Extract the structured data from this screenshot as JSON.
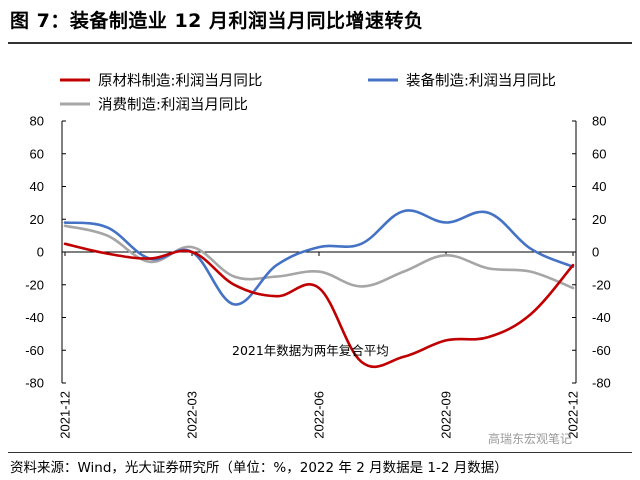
{
  "title": "图 7：装备制造业 12 月利润当月同比增速转负",
  "source": "资料来源：Wind，光大证券研究所（单位：%，2022 年 2 月数据是 1-2 月数据）",
  "watermark": "高瑞东宏观笔记",
  "chart_data": {
    "type": "line",
    "x": [
      "2021-12",
      "2022-01",
      "2022-02",
      "2022-03",
      "2022-04",
      "2022-05",
      "2022-06",
      "2022-07",
      "2022-08",
      "2022-09",
      "2022-10",
      "2022-11",
      "2022-12"
    ],
    "xticks": [
      "2021-12",
      "2022-03",
      "2022-06",
      "2022-09",
      "2022-12"
    ],
    "ylim": [
      -80,
      80
    ],
    "yticks": [
      -80,
      -60,
      -40,
      -20,
      0,
      20,
      40,
      60,
      80
    ],
    "annotation": "2021年数据为两年复合平均",
    "legend": "top",
    "grid": false,
    "series": [
      {
        "name": "原材料制造:利润当月同比",
        "color": "#c00000",
        "values": [
          5,
          -1,
          -4,
          0,
          -20,
          -27,
          -22,
          -67,
          -64,
          -54,
          -52,
          -38,
          -8
        ]
      },
      {
        "name": "装备制造:利润当月同比",
        "color": "#4472c4",
        "values": [
          18,
          15,
          -4,
          0,
          -32,
          -8,
          3,
          5,
          25,
          18,
          24,
          2,
          -9
        ]
      },
      {
        "name": "消费制造:利润当月同比",
        "color": "#a6a6a6",
        "values": [
          16,
          10,
          -6,
          3,
          -15,
          -15,
          -12,
          -21,
          -12,
          -2,
          -10,
          -12,
          -22
        ]
      }
    ]
  }
}
